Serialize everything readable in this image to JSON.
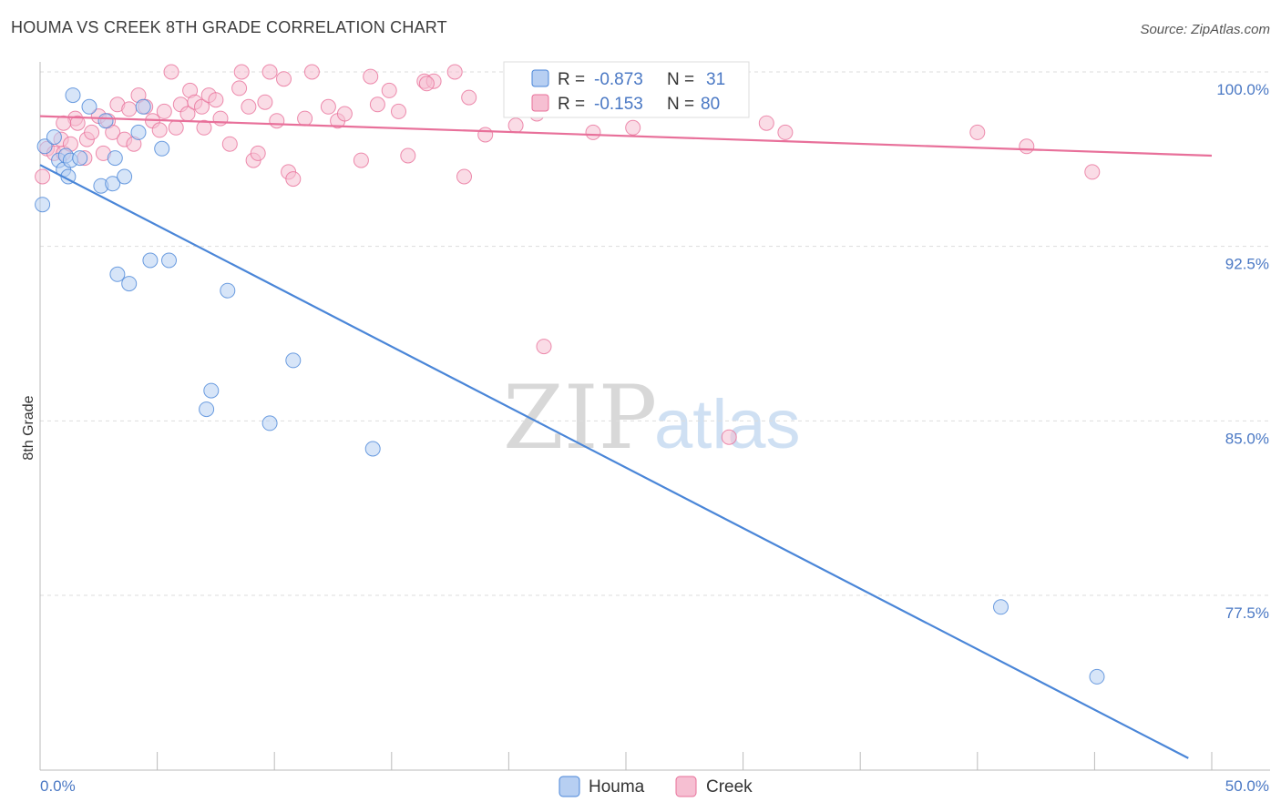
{
  "title": "HOUMA VS CREEK 8TH GRADE CORRELATION CHART",
  "source": "Source: ZipAtlas.com",
  "watermark": {
    "zip": "ZIP",
    "atlas": "atlas"
  },
  "colors": {
    "houma": "#4a86d8",
    "houma_fill": "#b7cff2",
    "creek": "#e8709a",
    "creek_fill": "#f6bfd2",
    "tick_text": "#4a78c4",
    "grid": "#dddddd"
  },
  "stats_legend": [
    {
      "series": "Houma",
      "r_label": "R =",
      "r_value": "-0.873",
      "n_label": "N =",
      "n_value": "31"
    },
    {
      "series": "Creek",
      "r_label": "R =",
      "r_value": "-0.153",
      "n_label": "N =",
      "n_value": "80"
    }
  ],
  "chart_data": {
    "type": "scatter",
    "title": "HOUMA VS CREEK 8TH GRADE CORRELATION CHART",
    "xlabel": "",
    "ylabel": "8th Grade",
    "xlim": [
      0,
      50
    ],
    "ylim": [
      70.5,
      100.5
    ],
    "x_tick_labels": [
      "0.0%",
      "50.0%"
    ],
    "y_ticks": [
      77.5,
      85.0,
      92.5,
      100.0
    ],
    "y_tick_labels": [
      "77.5%",
      "85.0%",
      "92.5%",
      "100.0%"
    ],
    "grid": true,
    "legend_position": "bottom-center",
    "series": [
      {
        "name": "Houma",
        "color": "#4a86d8",
        "trend": {
          "x": [
            0.0,
            49.0
          ],
          "y": [
            96.0,
            70.5
          ]
        },
        "points": [
          [
            0.1,
            94.3
          ],
          [
            0.2,
            96.8
          ],
          [
            0.6,
            97.2
          ],
          [
            0.8,
            96.2
          ],
          [
            1.0,
            95.8
          ],
          [
            1.1,
            96.4
          ],
          [
            1.2,
            95.5
          ],
          [
            1.3,
            96.2
          ],
          [
            1.4,
            99.0
          ],
          [
            1.7,
            96.3
          ],
          [
            2.1,
            98.5
          ],
          [
            2.6,
            95.1
          ],
          [
            2.8,
            97.9
          ],
          [
            3.1,
            95.2
          ],
          [
            3.2,
            96.3
          ],
          [
            3.3,
            91.3
          ],
          [
            3.6,
            95.5
          ],
          [
            3.8,
            90.9
          ],
          [
            4.2,
            97.4
          ],
          [
            4.4,
            98.5
          ],
          [
            4.7,
            91.9
          ],
          [
            5.2,
            96.7
          ],
          [
            5.5,
            91.9
          ],
          [
            7.1,
            85.5
          ],
          [
            7.3,
            86.3
          ],
          [
            8.0,
            90.6
          ],
          [
            9.8,
            84.9
          ],
          [
            10.8,
            87.6
          ],
          [
            14.2,
            83.8
          ],
          [
            41.0,
            77.0
          ],
          [
            45.1,
            74.0
          ]
        ]
      },
      {
        "name": "Creek",
        "color": "#e8709a",
        "trend": {
          "x": [
            0.0,
            50.0
          ],
          "y": [
            98.1,
            96.4
          ]
        },
        "points": [
          [
            0.1,
            95.5
          ],
          [
            0.3,
            96.7
          ],
          [
            0.6,
            96.5
          ],
          [
            0.9,
            97.1
          ],
          [
            1.0,
            96.5
          ],
          [
            1.3,
            96.9
          ],
          [
            1.5,
            98.0
          ],
          [
            1.6,
            97.8
          ],
          [
            1.9,
            96.3
          ],
          [
            2.0,
            97.1
          ],
          [
            2.2,
            97.4
          ],
          [
            2.5,
            98.1
          ],
          [
            2.7,
            96.5
          ],
          [
            2.9,
            97.9
          ],
          [
            3.1,
            97.4
          ],
          [
            3.3,
            98.6
          ],
          [
            3.6,
            97.1
          ],
          [
            3.8,
            98.4
          ],
          [
            4.0,
            96.9
          ],
          [
            4.2,
            99.0
          ],
          [
            4.5,
            98.5
          ],
          [
            4.8,
            97.9
          ],
          [
            5.1,
            97.5
          ],
          [
            5.3,
            98.3
          ],
          [
            5.6,
            100.0
          ],
          [
            5.8,
            97.6
          ],
          [
            6.0,
            98.6
          ],
          [
            6.3,
            98.2
          ],
          [
            6.4,
            99.2
          ],
          [
            6.6,
            98.7
          ],
          [
            6.9,
            98.5
          ],
          [
            7.0,
            97.6
          ],
          [
            7.2,
            99.0
          ],
          [
            7.5,
            98.8
          ],
          [
            7.7,
            98.0
          ],
          [
            8.1,
            96.9
          ],
          [
            8.5,
            99.3
          ],
          [
            8.6,
            100.0
          ],
          [
            8.9,
            98.5
          ],
          [
            9.1,
            96.2
          ],
          [
            9.3,
            96.5
          ],
          [
            9.6,
            98.7
          ],
          [
            9.8,
            100.0
          ],
          [
            10.1,
            97.9
          ],
          [
            10.4,
            99.7
          ],
          [
            10.6,
            95.7
          ],
          [
            10.8,
            95.4
          ],
          [
            11.3,
            98.0
          ],
          [
            11.6,
            100.0
          ],
          [
            12.3,
            98.5
          ],
          [
            12.7,
            97.9
          ],
          [
            13.0,
            98.2
          ],
          [
            13.7,
            96.2
          ],
          [
            14.1,
            99.8
          ],
          [
            14.4,
            98.6
          ],
          [
            14.9,
            99.2
          ],
          [
            15.3,
            98.3
          ],
          [
            15.7,
            96.4
          ],
          [
            16.4,
            99.6
          ],
          [
            16.8,
            99.6
          ],
          [
            17.7,
            100.0
          ],
          [
            18.1,
            95.5
          ],
          [
            18.3,
            98.9
          ],
          [
            19.0,
            97.3
          ],
          [
            20.3,
            97.7
          ],
          [
            21.2,
            98.2
          ],
          [
            22.3,
            100.0
          ],
          [
            23.4,
            99.3
          ],
          [
            23.6,
            97.4
          ],
          [
            24.6,
            99.0
          ],
          [
            25.3,
            97.6
          ],
          [
            29.4,
            84.3
          ],
          [
            31.0,
            97.8
          ],
          [
            31.8,
            97.4
          ],
          [
            40.0,
            97.4
          ],
          [
            42.1,
            96.8
          ],
          [
            44.9,
            95.7
          ],
          [
            21.5,
            88.2
          ],
          [
            1.0,
            97.8
          ],
          [
            16.5,
            99.5
          ]
        ]
      }
    ]
  }
}
